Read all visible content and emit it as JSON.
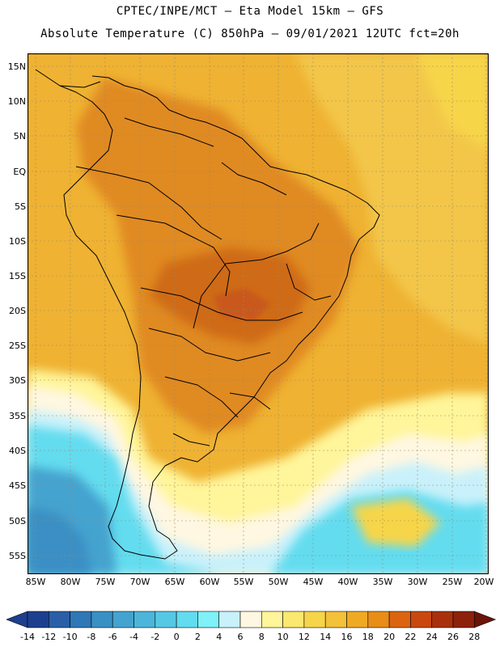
{
  "header": {
    "line1": "CPTEC/INPE/MCT –  Eta Model 15km – GFS",
    "line2": "Absolute Temperature (C) 850hPa – 09/01/2021 12UTC fct=20h"
  },
  "axes": {
    "lat_labels": [
      "15N",
      "10N",
      "5N",
      "EQ",
      "5S",
      "10S",
      "15S",
      "20S",
      "25S",
      "30S",
      "35S",
      "40S",
      "45S",
      "50S",
      "55S"
    ],
    "lon_labels": [
      "85W",
      "80W",
      "75W",
      "70W",
      "65W",
      "60W",
      "55W",
      "50W",
      "45W",
      "40W",
      "35W",
      "30W",
      "25W",
      "20W"
    ]
  },
  "colorbar": {
    "ticks": [
      "-14",
      "-12",
      "-10",
      "-8",
      "-6",
      "-4",
      "-2",
      "0",
      "2",
      "4",
      "6",
      "8",
      "10",
      "12",
      "14",
      "16",
      "18",
      "20",
      "22",
      "24",
      "26",
      "28"
    ],
    "colors": [
      "#1d3f8f",
      "#2a5ea6",
      "#2f77b5",
      "#3a8fc4",
      "#44a3cf",
      "#4bb6da",
      "#56c8e3",
      "#63dcef",
      "#7ff1f7",
      "#c9f1fb",
      "#fff7e1",
      "#fff59a",
      "#fbe870",
      "#f7d54a",
      "#f3c13a",
      "#efaa25",
      "#e78d18",
      "#dc6410",
      "#c94810",
      "#a8300c",
      "#8c220a",
      "#6b1408"
    ]
  },
  "map_colors": {
    "ocean_warm": "#efb232",
    "ocean_mid": "#f3c64a",
    "land_hot": "#e08a20",
    "land_hotter": "#cf6a14",
    "cold_1": "#c9f1fb",
    "cold_2": "#63dcef",
    "cold_3": "#44a3cf",
    "cold_4": "#3a8fc4",
    "cream": "#fff7e1",
    "yellow": "#fff59a"
  }
}
